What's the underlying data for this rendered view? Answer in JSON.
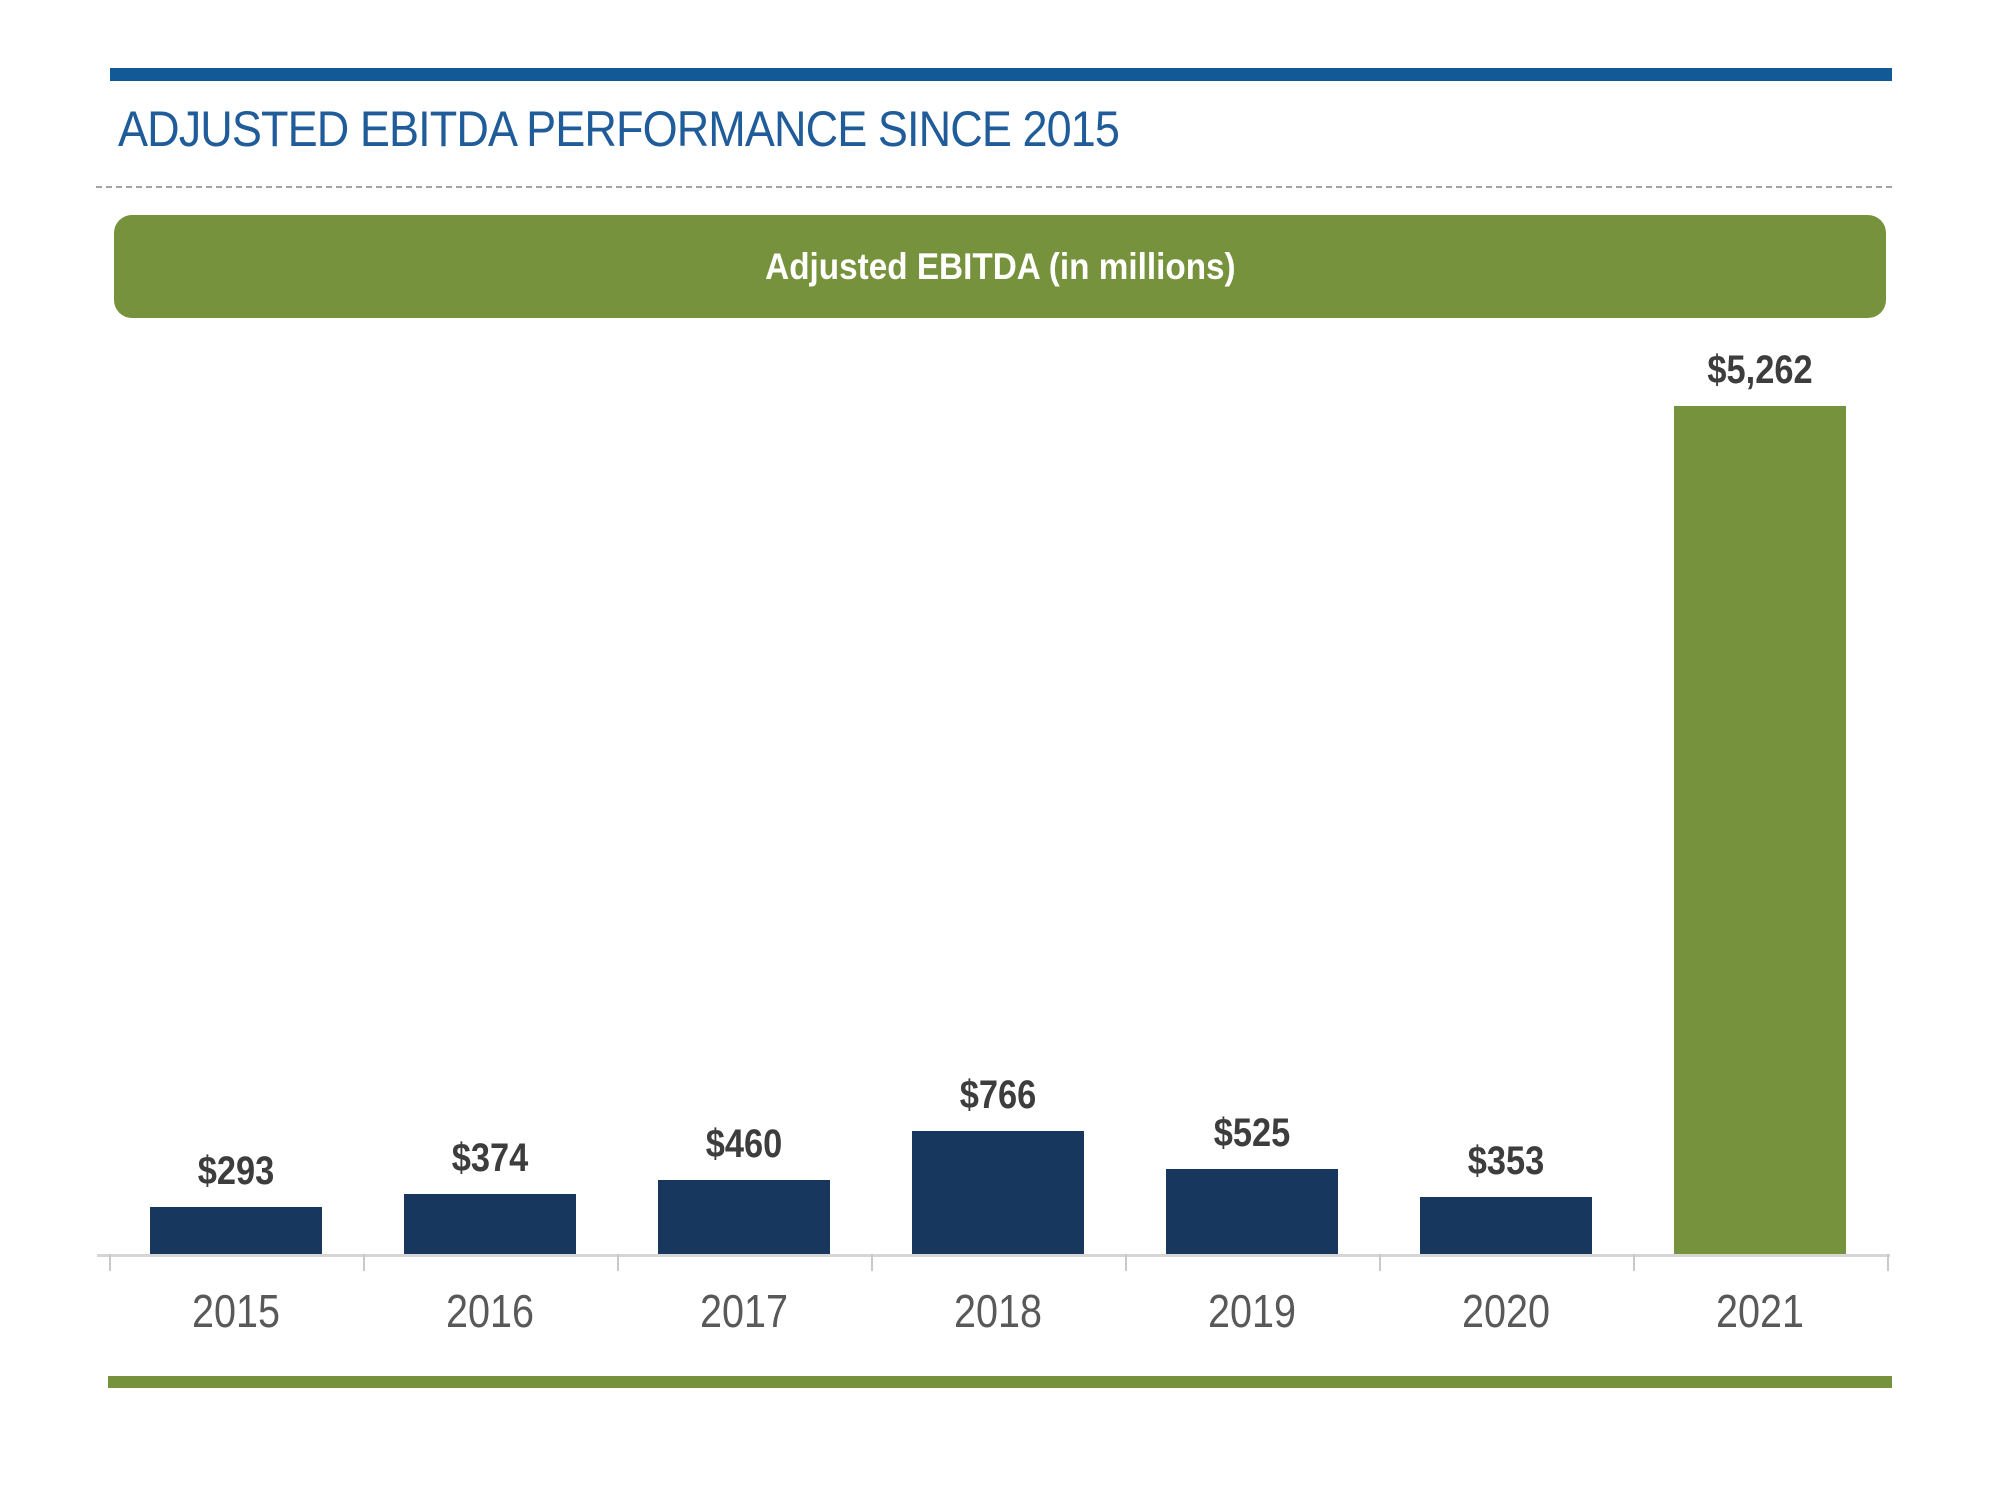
{
  "slide": {
    "title": "ADJUSTED EBITDA PERFORMANCE SINCE 2015",
    "colors": {
      "title_blue": "#1F5C99",
      "rule_blue": "#115A96",
      "olive_green": "#76923C",
      "navy": "#17375E",
      "axis_gray": "#D6D6D6",
      "tick_gray": "#C9C9C9",
      "value_label_gray": "#3D3D3D",
      "year_label_gray": "#595959"
    }
  },
  "chart_data": {
    "type": "bar",
    "title": "Adjusted EBITDA (in millions)",
    "categories": [
      "2015",
      "2016",
      "2017",
      "2018",
      "2019",
      "2020",
      "2021"
    ],
    "values": [
      293,
      374,
      460,
      766,
      525,
      353,
      5262
    ],
    "value_labels": [
      "$293",
      "$374",
      "$460",
      "$766",
      "$525",
      "$353",
      "$5,262"
    ],
    "bar_colors": [
      "#17375E",
      "#17375E",
      "#17375E",
      "#17375E",
      "#17375E",
      "#17375E",
      "#76923C"
    ],
    "xlabel": "",
    "ylabel": "",
    "ylim": [
      0,
      5600
    ],
    "grid": false,
    "legend": "none",
    "data_labels": "above bars",
    "baseline_axis": "x-axis only, light gray with category ticks"
  }
}
